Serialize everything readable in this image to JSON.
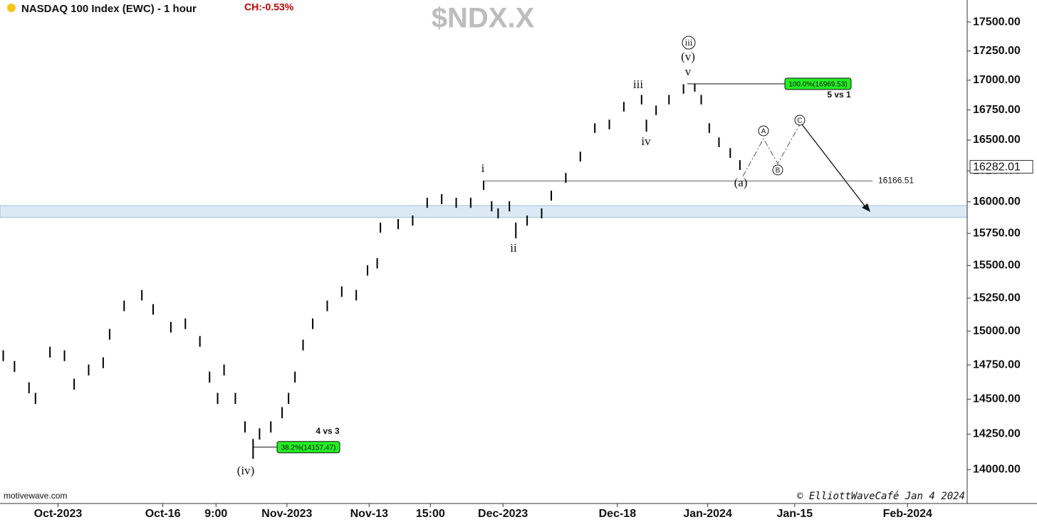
{
  "chart_data": {
    "type": "ohlc",
    "title": "NASDAQ 100 Index (EWC) - 1 hour",
    "change": "CH:-0.53%",
    "symbol": "$NDX.X",
    "color": "#000000",
    "x": [
      2,
      9,
      18,
      22,
      31,
      40,
      46,
      55,
      64,
      68,
      77,
      88,
      95,
      106,
      115,
      124,
      130,
      135,
      139,
      146,
      152,
      157,
      161,
      168,
      175,
      179,
      183,
      188,
      194,
      203,
      212,
      221,
      228,
      234,
      236,
      247,
      256,
      265,
      274,
      283,
      292,
      300,
      305,
      309,
      316,
      320,
      327,
      336,
      342,
      351,
      360,
      369,
      378,
      387,
      398,
      401,
      407,
      415,
      424,
      431,
      435,
      440,
      446,
      453,
      459
    ],
    "high": [
      14858,
      14779,
      14623,
      14546,
      14884,
      14858,
      14649,
      14753,
      14806,
      15017,
      15231,
      15312,
      15204,
      15070,
      15096,
      14964,
      14701,
      14546,
      14753,
      14546,
      14341,
      14215,
      14291,
      14341,
      14443,
      14546,
      14701,
      14937,
      15096,
      15231,
      15339,
      15312,
      15502,
      15557,
      15835,
      15863,
      15891,
      16032,
      16061,
      16032,
      16032,
      16170,
      16004,
      15948,
      16004,
      15835,
      15891,
      15948,
      16089,
      16232,
      16405,
      16639,
      16669,
      16817,
      16876,
      16669,
      16787,
      16876,
      16966,
      16970,
      16876,
      16639,
      16522,
      16434,
      16336
    ],
    "low": [
      14778,
      14699,
      14543,
      14466,
      14804,
      14778,
      14569,
      14673,
      14726,
      14937,
      15151,
      15232,
      15124,
      14990,
      15016,
      14884,
      14621,
      14466,
      14673,
      14466,
      14261,
      14075,
      14211,
      14261,
      14363,
      14466,
      14621,
      14857,
      15016,
      15151,
      15259,
      15232,
      15422,
      15477,
      15755,
      15783,
      15811,
      15952,
      15981,
      15952,
      15952,
      16095,
      15924,
      15868,
      15924,
      15711,
      15811,
      15868,
      16009,
      16152,
      16325,
      16559,
      16589,
      16737,
      16796,
      16570,
      16707,
      16796,
      16886,
      16904,
      16796,
      16559,
      16442,
      16354,
      16256
    ],
    "xlim": [
      0,
      600
    ],
    "xticks": [
      {
        "value": 36,
        "label": "Oct-2023"
      },
      {
        "value": 101,
        "label": "Oct-16"
      },
      {
        "value": 134,
        "label": "9:00"
      },
      {
        "value": 178,
        "label": "Nov-2023"
      },
      {
        "value": 229,
        "label": "Nov-13"
      },
      {
        "value": 267,
        "label": "15:00"
      },
      {
        "value": 312,
        "label": "Dec-2023"
      },
      {
        "value": 383,
        "label": "Dec-18"
      },
      {
        "value": 439,
        "label": "Jan-2024"
      },
      {
        "value": 493,
        "label": "Jan-15"
      },
      {
        "value": 563,
        "label": "Feb-2024"
      }
    ],
    "ylim": [
      13765,
      17694
    ],
    "log_scale": true,
    "yticks": [
      {
        "value": 14000,
        "label": "14000.00"
      },
      {
        "value": 14250,
        "label": "14250.00"
      },
      {
        "value": 14500,
        "label": "14500.00"
      },
      {
        "value": 14750,
        "label": "14750.00"
      },
      {
        "value": 15000,
        "label": "15000.00"
      },
      {
        "value": 15250,
        "label": "15250.00"
      },
      {
        "value": 15500,
        "label": "15500.00"
      },
      {
        "value": 15750,
        "label": "15750.00"
      },
      {
        "value": 16000,
        "label": "16000.00"
      },
      {
        "value": 16250,
        "label": "16250.00"
      },
      {
        "value": 16500,
        "label": "16500.00"
      },
      {
        "value": 16750,
        "label": "16750.00"
      },
      {
        "value": 17000,
        "label": "17000.00"
      },
      {
        "value": 17250,
        "label": "17250.00"
      },
      {
        "value": 17500,
        "label": "17500.00"
      }
    ],
    "last_price": 16282.01,
    "level": 16166.51,
    "fib_levels": [
      {
        "value": 16969.53,
        "label": "100.0%(16969.53)",
        "note": "5 vs 1"
      },
      {
        "value": 14157.47,
        "label": "38.2%(14157.47)",
        "note": "4 vs 3"
      }
    ],
    "zone": [
      15877,
      15970
    ],
    "wave_labels": [
      "(iv)",
      "i",
      "ii",
      "iii",
      "iv",
      "v",
      "(v)",
      "iii",
      "(a)",
      "A",
      "B",
      "C"
    ],
    "source": "motivewave.com",
    "credit": "© ElliottWaveCafé Jan 4 2024"
  }
}
